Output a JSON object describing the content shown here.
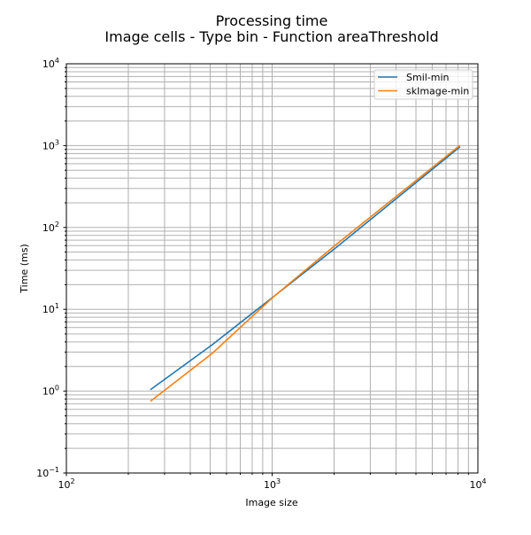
{
  "chart_data": {
    "type": "line",
    "title": "Processing time",
    "subtitle": "Image cells - Type bin - Function areaThreshold",
    "xlabel": "Image size",
    "ylabel": "Time (ms)",
    "xscale": "log",
    "yscale": "log",
    "xlim": [
      100,
      10000
    ],
    "ylim": [
      0.1,
      10000
    ],
    "x_ticks": [
      {
        "v": 100,
        "base": "10",
        "exp": "2"
      },
      {
        "v": 1000,
        "base": "10",
        "exp": "3"
      },
      {
        "v": 10000,
        "base": "10",
        "exp": "4"
      }
    ],
    "y_ticks": [
      {
        "v": 0.1,
        "base": "10",
        "exp": "−1"
      },
      {
        "v": 1,
        "base": "10",
        "exp": "0"
      },
      {
        "v": 10,
        "base": "10",
        "exp": "1"
      },
      {
        "v": 100,
        "base": "10",
        "exp": "2"
      },
      {
        "v": 1000,
        "base": "10",
        "exp": "3"
      },
      {
        "v": 10000,
        "base": "10",
        "exp": "4"
      }
    ],
    "grid": true,
    "legend_position": "top-right",
    "x": [
      256,
      512,
      1024,
      2048,
      4096,
      8192
    ],
    "series": [
      {
        "name": "Smil-min",
        "color": "#1f77b4",
        "values": [
          1.04,
          3.7,
          14.5,
          57,
          235,
          970
        ]
      },
      {
        "name": "skImage-min",
        "color": "#ff7f0e",
        "values": [
          0.75,
          2.9,
          14.5,
          62,
          250,
          1010
        ]
      }
    ]
  }
}
